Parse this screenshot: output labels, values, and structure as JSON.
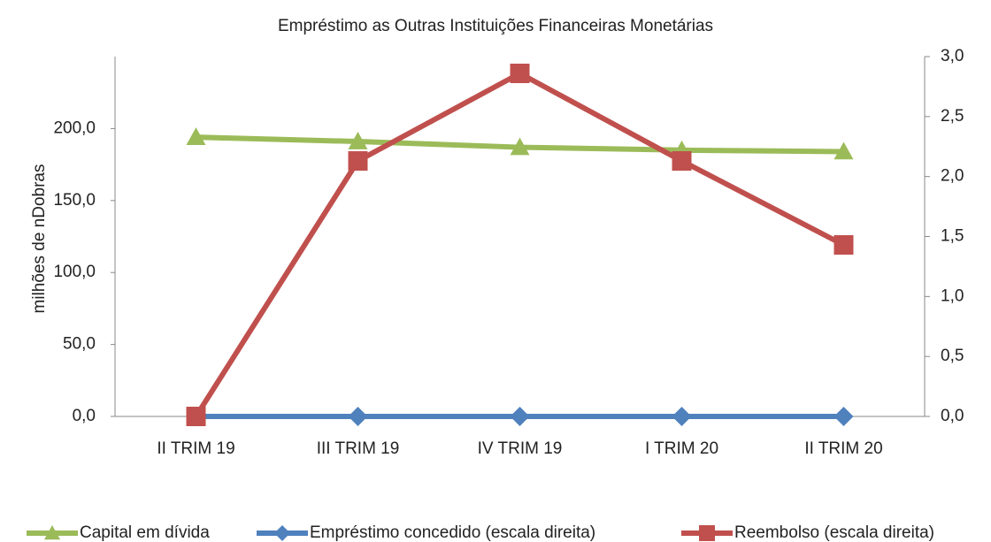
{
  "chart_data": {
    "type": "line",
    "title": "Empréstimo as Outras Instituições Financeiras Monetárias",
    "ylabel": "milhões de nDobras",
    "categories": [
      "II TRIM 19",
      "III TRIM 19",
      "IV TRIM 19",
      "I TRIM 20",
      "II TRIM 20"
    ],
    "series": [
      {
        "name": "Capital em dívida",
        "color": "#9bbb59",
        "marker": "triangle",
        "values": [
          194,
          191,
          187,
          185,
          184
        ]
      },
      {
        "name": "Empréstimo concedido (escala direita)",
        "color": "#4f81bd",
        "marker": "diamond",
        "axis": "y2",
        "values": [
          0,
          0,
          0,
          0,
          0
        ]
      },
      {
        "name": "Reembolso (escala direita)",
        "color": "#c0504d",
        "marker": "square",
        "axis": "y2",
        "values": [
          0,
          2.13,
          2.86,
          2.13,
          1.43
        ]
      }
    ],
    "ylim": [
      0,
      250
    ],
    "yticks": [
      {
        "value": 0,
        "label": "0,0"
      },
      {
        "value": 50,
        "label": "50,0"
      },
      {
        "value": 100,
        "label": "100,0"
      },
      {
        "value": 150,
        "label": "150,0"
      },
      {
        "value": 200,
        "label": "200,0"
      }
    ],
    "y2lim": [
      0,
      3
    ],
    "y2ticks": [
      {
        "value": 0,
        "label": "0,0"
      },
      {
        "value": 0.5,
        "label": "0,5"
      },
      {
        "value": 1,
        "label": "1,0"
      },
      {
        "value": 1.5,
        "label": "1,5"
      },
      {
        "value": 2,
        "label": "2,0"
      },
      {
        "value": 2.5,
        "label": "2,5"
      },
      {
        "value": 3,
        "label": "3,0"
      }
    ],
    "legend": "bottom"
  }
}
